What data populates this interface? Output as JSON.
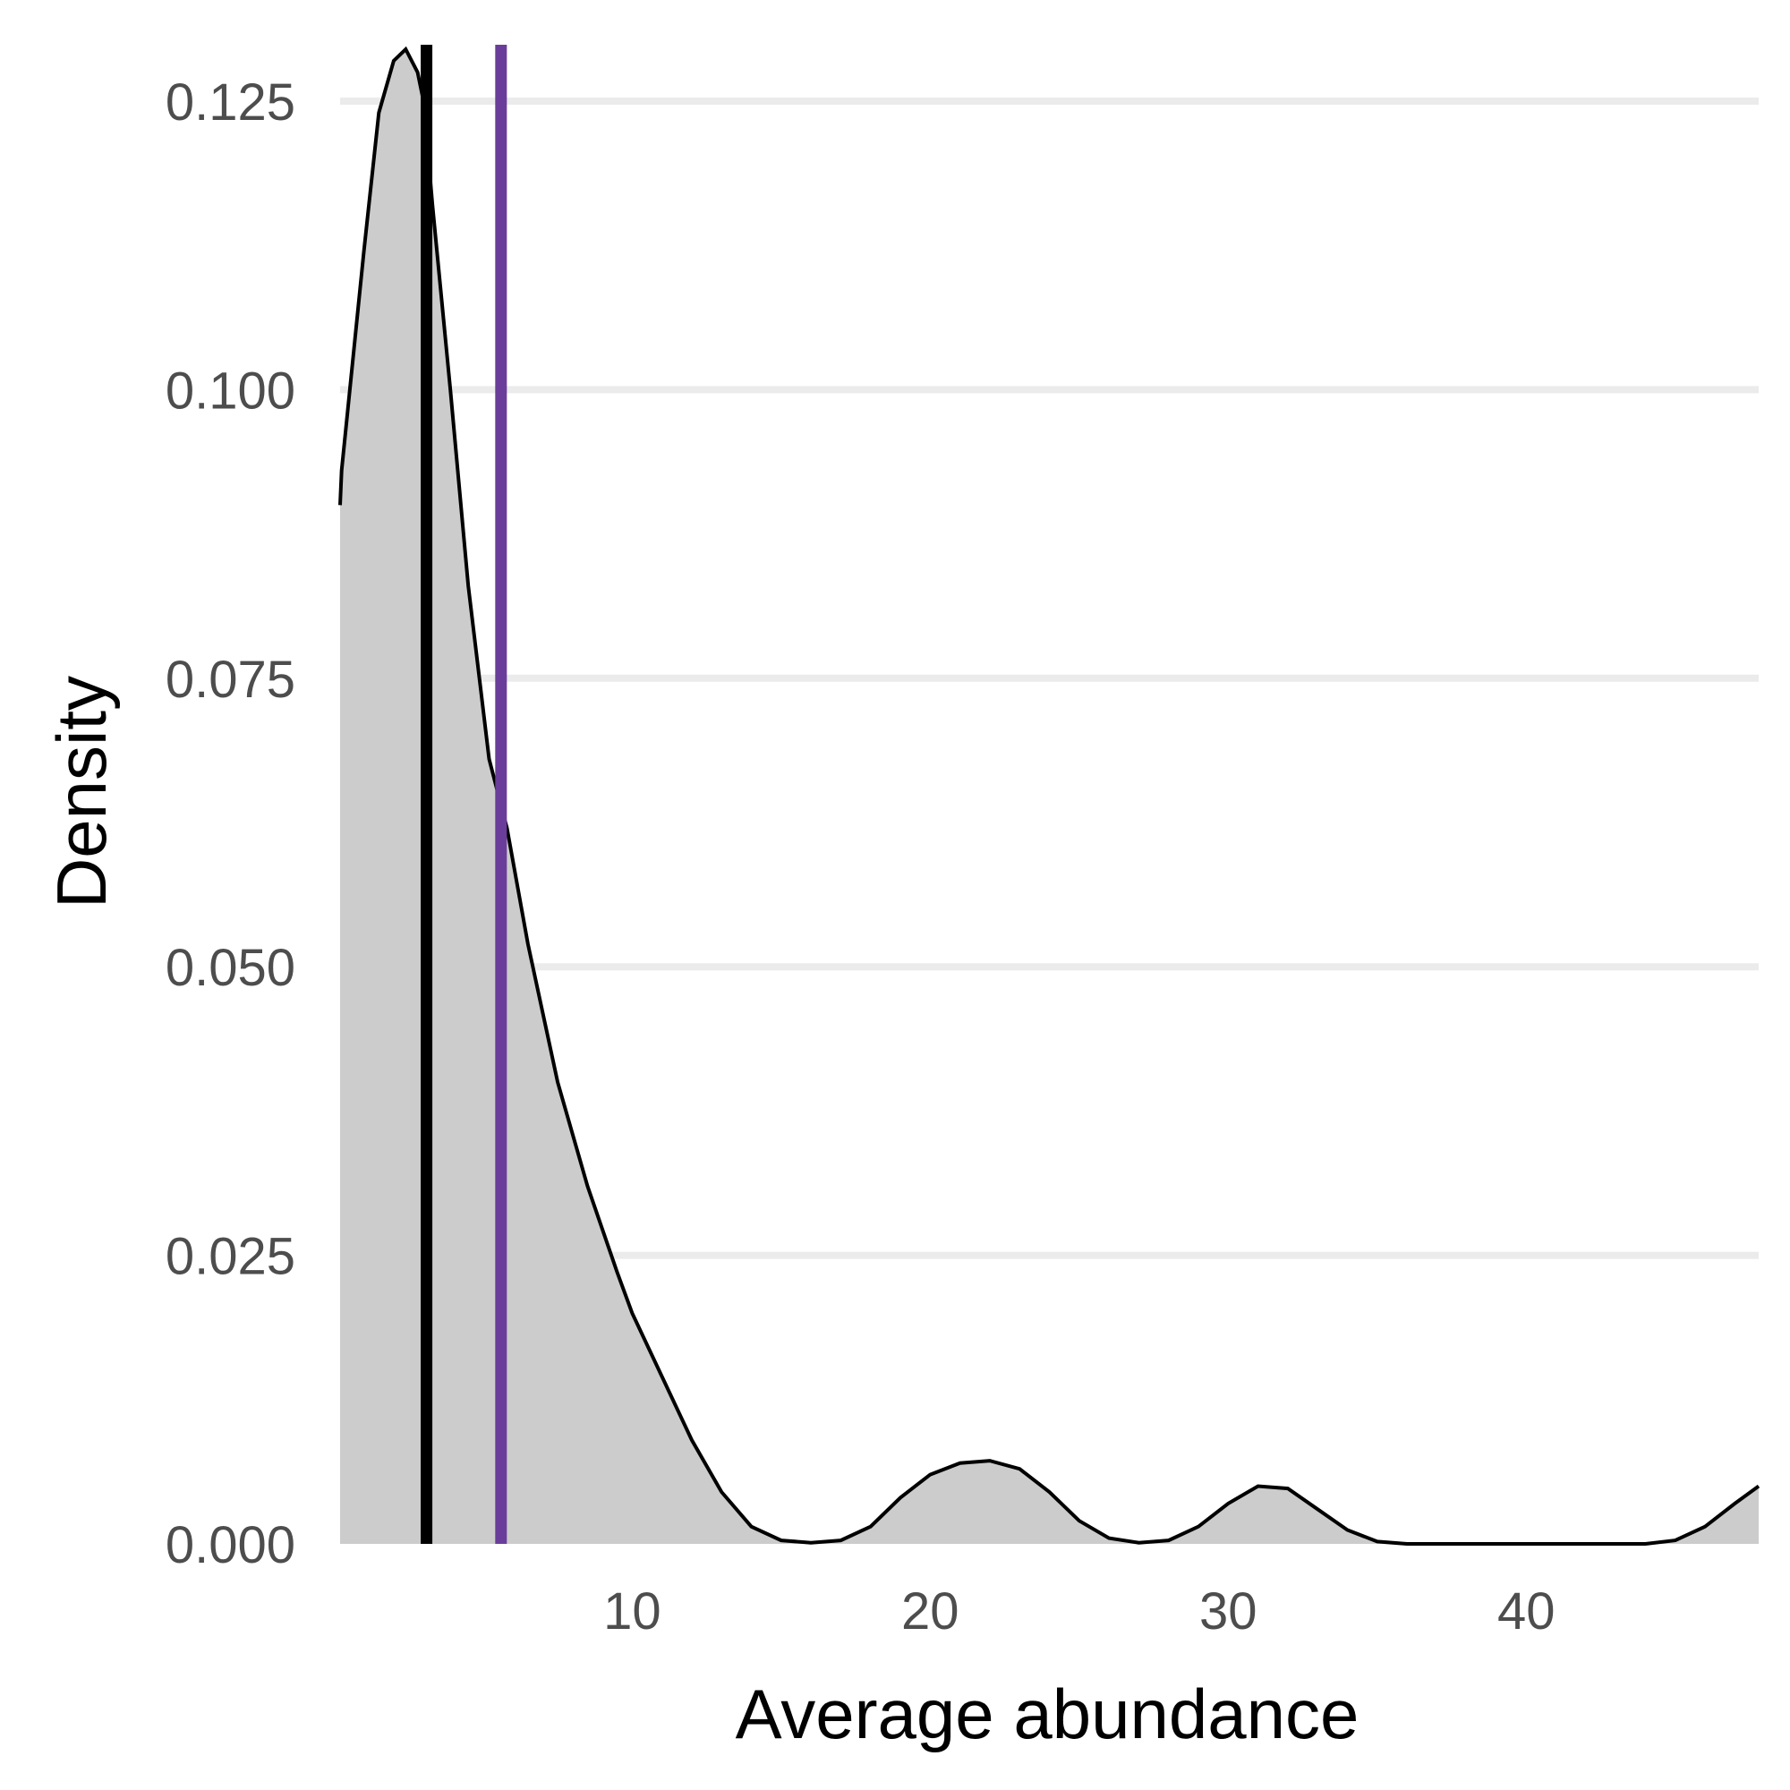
{
  "chart_data": {
    "type": "area",
    "title": "",
    "xlabel": "Average abundance",
    "ylabel": "Density",
    "xlim": [
      0.2,
      47.8
    ],
    "ylim": [
      0,
      0.125
    ],
    "xticks": [
      10,
      20,
      30,
      40
    ],
    "yticks": [
      0.0,
      0.025,
      0.05,
      0.075,
      0.1,
      0.125
    ],
    "ytick_labels": [
      "0.000",
      "0.025",
      "0.050",
      "0.075",
      "0.100",
      "0.125"
    ],
    "grid": "horizontal major lines",
    "density_curve": {
      "x": [
        0.2,
        0.25,
        1.0,
        1.5,
        2.0,
        2.4,
        2.8,
        3.0,
        3.3,
        3.9,
        4.5,
        5.2,
        5.8,
        6.5,
        7.5,
        8.5,
        9.5,
        10.0,
        11.0,
        12.0,
        13.0,
        14.0,
        15.0,
        16.0,
        17.0,
        18.0,
        19.0,
        20.0,
        21.0,
        22.0,
        23.0,
        24.0,
        25.0,
        26.0,
        27.0,
        28.0,
        29.0,
        30.0,
        31.0,
        32.0,
        33.0,
        34.0,
        35.0,
        36.0,
        38.0,
        40.0,
        42.0,
        43.0,
        44.0,
        45.0,
        46.0,
        47.0,
        47.8
      ],
      "y": [
        0.09,
        0.093,
        0.112,
        0.124,
        0.1285,
        0.1295,
        0.1275,
        0.125,
        0.116,
        0.1,
        0.083,
        0.068,
        0.062,
        0.052,
        0.04,
        0.031,
        0.0235,
        0.02,
        0.0145,
        0.009,
        0.0045,
        0.0015,
        0.0003,
        0.0001,
        0.0003,
        0.0015,
        0.004,
        0.006,
        0.007,
        0.0072,
        0.0065,
        0.0045,
        0.002,
        0.0005,
        0.0001,
        0.0003,
        0.0015,
        0.0035,
        0.005,
        0.0048,
        0.003,
        0.0012,
        0.0002,
        0.0,
        0.0,
        0.0,
        0.0,
        0.0,
        0.0,
        0.0003,
        0.0015,
        0.0035,
        0.005
      ]
    },
    "vlines": [
      {
        "x": 3.1,
        "color": "#000000"
      },
      {
        "x": 5.6,
        "color": "#6a3d9a"
      }
    ],
    "colors": {
      "fill": "#cccccc",
      "curve": "#000000",
      "grid": "#ebebeb"
    }
  }
}
